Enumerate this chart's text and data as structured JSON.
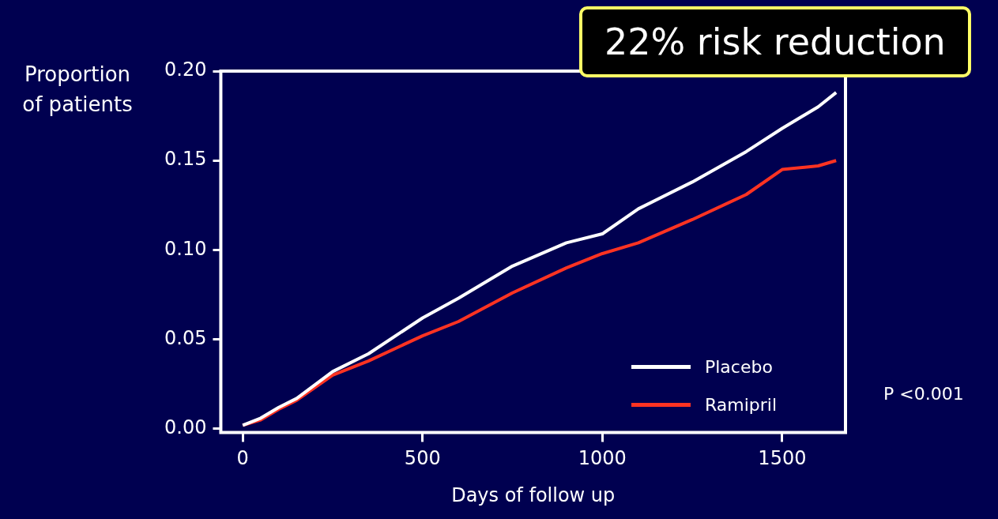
{
  "chart_data": {
    "type": "line",
    "xlabel": "Days of follow up",
    "ylabel": "Proportion\nof patients",
    "x": [
      0,
      50,
      100,
      150,
      250,
      350,
      500,
      600,
      750,
      900,
      1000,
      1100,
      1250,
      1400,
      1500,
      1600,
      1650
    ],
    "series": [
      {
        "name": "Placebo",
        "color": "#ffffff",
        "values": [
          0.002,
          0.006,
          0.012,
          0.017,
          0.032,
          0.042,
          0.062,
          0.073,
          0.091,
          0.104,
          0.109,
          0.123,
          0.138,
          0.155,
          0.168,
          0.18,
          0.188
        ]
      },
      {
        "name": "Ramipril",
        "color": "#ff3322",
        "values": [
          0.002,
          0.005,
          0.011,
          0.016,
          0.03,
          0.038,
          0.052,
          0.06,
          0.076,
          0.09,
          0.098,
          0.104,
          0.117,
          0.131,
          0.145,
          0.147,
          0.15
        ]
      }
    ],
    "xlim": [
      -61,
      1676
    ],
    "ylim": [
      -0.002,
      0.2
    ],
    "xticks": [
      0,
      500,
      1000,
      1500
    ],
    "yticks": [
      {
        "value": 0,
        "label": "0.00"
      },
      {
        "value": 0.05,
        "label": "0.05"
      },
      {
        "value": 0.1,
        "label": "0.10"
      },
      {
        "value": 0.15,
        "label": "0.15"
      },
      {
        "value": 0.2,
        "label": "0.20"
      }
    ],
    "grid": false,
    "legend": "bottom right",
    "marker": "none",
    "line_style": "solid",
    "annotations": [
      "22% risk reduction",
      "P <0.001"
    ]
  }
}
